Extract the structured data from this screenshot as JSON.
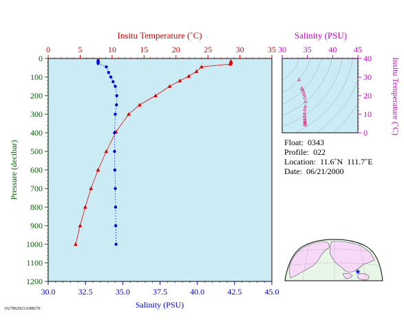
{
  "colors": {
    "plot_bg": "#ccecf5",
    "temperature": "#e00000",
    "salinity": "#0000e0",
    "salinity_axis": "#cc00cc",
    "depth_axis": "#006400",
    "land": "#f7d8f7",
    "ocean": "#e8f6e8"
  },
  "chart_data": [
    {
      "type": "line",
      "x_top_label": "Insitu Temperature (˚C)",
      "x_top_ticks": [
        "0",
        "5",
        "10",
        "15",
        "20",
        "25",
        "30",
        "35"
      ],
      "x_top_range": [
        0,
        35
      ],
      "x_bottom_label": "Salinity (PSU)",
      "x_bottom_ticks": [
        "30.0",
        "32.5",
        "35.0",
        "37.5",
        "40.0",
        "42.5",
        "45.0"
      ],
      "x_bottom_range": [
        30,
        45
      ],
      "ylabel": "Pressure (decibar)",
      "y_ticks": [
        "0",
        "100",
        "200",
        "300",
        "400",
        "500",
        "600",
        "700",
        "800",
        "900",
        "1000",
        "1100",
        "1200"
      ],
      "y_range": [
        0,
        1200
      ],
      "y_inverted": true,
      "series": [
        {
          "key": "temperature",
          "marker": "triangle",
          "points": [
            {
              "t": 28.6,
              "p": 15
            },
            {
              "t": 28.6,
              "p": 22
            },
            {
              "t": 28.5,
              "p": 30
            },
            {
              "t": 24.0,
              "p": 45
            },
            {
              "t": 23.2,
              "p": 70
            },
            {
              "t": 22.0,
              "p": 95
            },
            {
              "t": 20.6,
              "p": 120
            },
            {
              "t": 19.0,
              "p": 150
            },
            {
              "t": 16.8,
              "p": 200
            },
            {
              "t": 14.3,
              "p": 250
            },
            {
              "t": 12.6,
              "p": 300
            },
            {
              "t": 10.6,
              "p": 395
            },
            {
              "t": 9.1,
              "p": 500
            },
            {
              "t": 7.8,
              "p": 600
            },
            {
              "t": 6.7,
              "p": 700
            },
            {
              "t": 5.8,
              "p": 800
            },
            {
              "t": 5.0,
              "p": 900
            },
            {
              "t": 4.3,
              "p": 1000
            }
          ]
        },
        {
          "key": "salinity",
          "marker": "circle",
          "points": [
            {
              "s": 33.35,
              "p": 12
            },
            {
              "s": 33.35,
              "p": 17
            },
            {
              "s": 33.35,
              "p": 22
            },
            {
              "s": 33.35,
              "p": 27
            },
            {
              "s": 33.9,
              "p": 45
            },
            {
              "s": 34.05,
              "p": 75
            },
            {
              "s": 34.2,
              "p": 100
            },
            {
              "s": 34.35,
              "p": 125
            },
            {
              "s": 34.5,
              "p": 150
            },
            {
              "s": 34.6,
              "p": 200
            },
            {
              "s": 34.58,
              "p": 250
            },
            {
              "s": 34.5,
              "p": 300
            },
            {
              "s": 34.45,
              "p": 400
            },
            {
              "s": 34.45,
              "p": 500
            },
            {
              "s": 34.47,
              "p": 600
            },
            {
              "s": 34.5,
              "p": 700
            },
            {
              "s": 34.52,
              "p": 800
            },
            {
              "s": 34.53,
              "p": 900
            },
            {
              "s": 34.55,
              "p": 1000
            }
          ]
        }
      ]
    },
    {
      "type": "scatter",
      "xlabel": "Salinity (PSU)",
      "x_ticks": [
        "30",
        "35",
        "40",
        "45"
      ],
      "x_range": [
        30,
        45
      ],
      "ylabel": "Insitu Temperature (˚C)",
      "y_ticks": [
        "0",
        "10",
        "20",
        "30",
        "40"
      ],
      "y_range": [
        0,
        40
      ],
      "points": [
        {
          "s": 33.35,
          "t": 28.6
        },
        {
          "s": 33.9,
          "t": 24.0
        },
        {
          "s": 34.05,
          "t": 23.2
        },
        {
          "s": 34.2,
          "t": 22.0
        },
        {
          "s": 34.35,
          "t": 20.6
        },
        {
          "s": 34.5,
          "t": 19.0
        },
        {
          "s": 34.6,
          "t": 16.8
        },
        {
          "s": 34.58,
          "t": 14.3
        },
        {
          "s": 34.5,
          "t": 12.6
        },
        {
          "s": 34.45,
          "t": 10.6
        },
        {
          "s": 34.45,
          "t": 9.1
        },
        {
          "s": 34.47,
          "t": 7.8
        },
        {
          "s": 34.5,
          "t": 6.7
        },
        {
          "s": 34.52,
          "t": 5.8
        },
        {
          "s": 34.53,
          "t": 5.0
        },
        {
          "s": 34.55,
          "t": 4.3
        }
      ]
    }
  ],
  "info": {
    "float": "Float:  0343",
    "profile": "Profile:  022",
    "location": "Location:  11.6˚N  111.7˚E",
    "date": "Date:  06/21/2000"
  },
  "map": {
    "float_lat": 11.6,
    "float_lon": 111.7
  },
  "id_text": "1027862923.0388276"
}
